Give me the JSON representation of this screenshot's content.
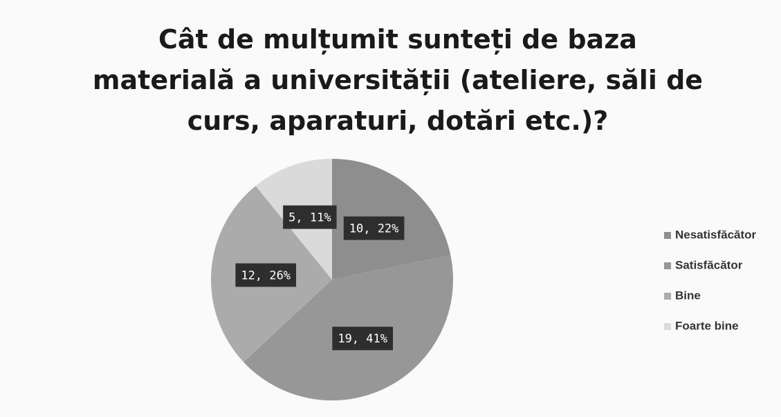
{
  "chart_data": {
    "type": "pie",
    "title": "Cât de mulțumit sunteți de baza materială a universității (ateliere, săli de curs, aparaturi, dotări etc.)?",
    "categories": [
      "Nesatisfăcător",
      "Satisfăcător",
      "Bine",
      "Foarte bine"
    ],
    "values": [
      10,
      19,
      12,
      5
    ],
    "value_labels": [
      "10, 22%",
      "19, 41%",
      "12, 26%",
      "5, 11%"
    ],
    "colors": [
      "#8e8e8e",
      "#979797",
      "#ababab",
      "#dadada"
    ],
    "legend": "right"
  }
}
